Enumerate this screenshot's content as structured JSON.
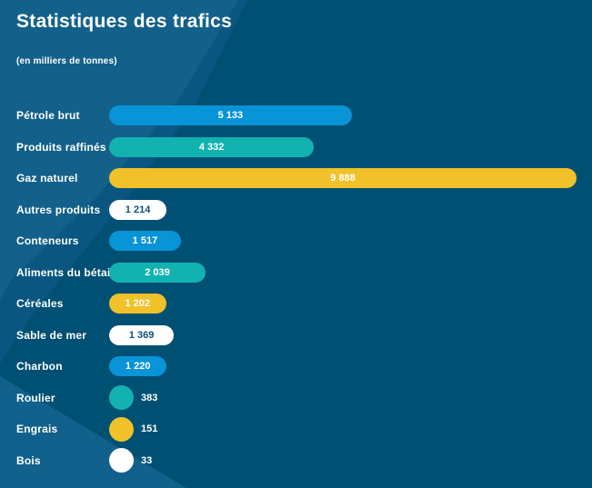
{
  "title": "Statistiques des trafics",
  "subtitle": "(en milliers de tonnes)",
  "colors": {
    "background": "#005074",
    "background_mid_band": "#0A5680",
    "background_light_band": "#13618A",
    "background_bottom_band": "#11618C",
    "bar_blue": "#0894D6",
    "bar_teal": "#12B2B0",
    "bar_yellow": "#F0C128",
    "bar_white": "#FFFFFF",
    "value_text_on_white": "#0A5078",
    "value_text_on_color": "#FFFFFF",
    "label_text": "#FFFFFF"
  },
  "chart_data": {
    "type": "bar",
    "orientation": "horizontal",
    "title": "Statistiques des trafics",
    "subtitle": "(en milliers de tonnes)",
    "unit": "milliers de tonnes",
    "x_max": 9888,
    "grid": false,
    "legend": false,
    "categories": [
      "Pétrole brut",
      "Produits raffinés",
      "Gaz naturel",
      "Autres produits",
      "Conteneurs",
      "Aliments du bétail",
      "Céréales",
      "Sable de mer",
      "Charbon",
      "Roulier",
      "Engrais",
      "Bois"
    ],
    "values": [
      5133,
      4332,
      9888,
      1214,
      1517,
      2039,
      1202,
      1369,
      1220,
      383,
      151,
      33
    ],
    "value_labels": [
      "5 133",
      "4 332",
      "9 888",
      "1 214",
      "1 517",
      "2 039",
      "1 202",
      "1 369",
      "1 220",
      "383",
      "151",
      "33"
    ],
    "bar_colors": [
      "blue",
      "teal",
      "yellow",
      "white",
      "blue",
      "teal",
      "yellow",
      "white",
      "blue",
      "teal",
      "yellow",
      "white"
    ]
  }
}
